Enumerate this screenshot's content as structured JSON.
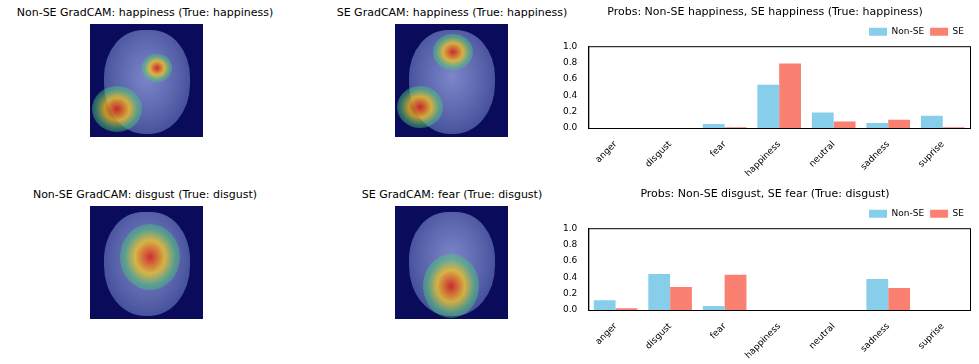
{
  "image_panels": [
    {
      "title": "Non-SE GradCAM: happiness (True: happiness)"
    },
    {
      "title": "SE GradCAM: happiness (True: happiness)"
    },
    {
      "title": "Non-SE GradCAM: disgust (True: disgust)"
    },
    {
      "title": "SE GradCAM: fear (True: disgust)"
    }
  ],
  "chart_data": [
    {
      "type": "bar",
      "title": "Probs: Non-SE happiness, SE happiness (True: happiness)",
      "categories": [
        "anger",
        "disgust",
        "fear",
        "happiness",
        "neutral",
        "sadness",
        "suprise"
      ],
      "series": [
        {
          "name": "Non-SE",
          "color": "#87ceeb",
          "values": [
            0,
            0,
            0.05,
            0.53,
            0.19,
            0.06,
            0.15
          ]
        },
        {
          "name": "SE",
          "color": "#fa8072",
          "values": [
            0,
            0,
            0.01,
            0.79,
            0.08,
            0.1,
            0.01
          ]
        }
      ],
      "ylim": [
        0,
        1
      ],
      "yticks": [
        {
          "value": 0,
          "label": "0.0"
        },
        0.2,
        0.4,
        0.6,
        0.8,
        {
          "value": 1,
          "label": "1.0"
        }
      ],
      "grid": false,
      "legend": "upper right"
    },
    {
      "type": "bar",
      "title": "Probs: Non-SE disgust, SE fear (True: disgust)",
      "categories": [
        "anger",
        "disgust",
        "fear",
        "happiness",
        "neutral",
        "sadness",
        "suprise"
      ],
      "series": [
        {
          "name": "Non-SE",
          "color": "#87ceeb",
          "values": [
            0.12,
            0.44,
            0.05,
            0,
            0,
            0.38,
            0
          ]
        },
        {
          "name": "SE",
          "color": "#fa8072",
          "values": [
            0.02,
            0.28,
            0.43,
            0,
            0,
            0.27,
            0
          ]
        }
      ],
      "ylim": [
        0,
        1
      ],
      "yticks": [
        {
          "value": 0,
          "label": "0.0"
        },
        0.2,
        0.4,
        0.6,
        0.8,
        {
          "value": 1,
          "label": "1.0"
        }
      ],
      "grid": false,
      "legend": "upper right"
    }
  ]
}
